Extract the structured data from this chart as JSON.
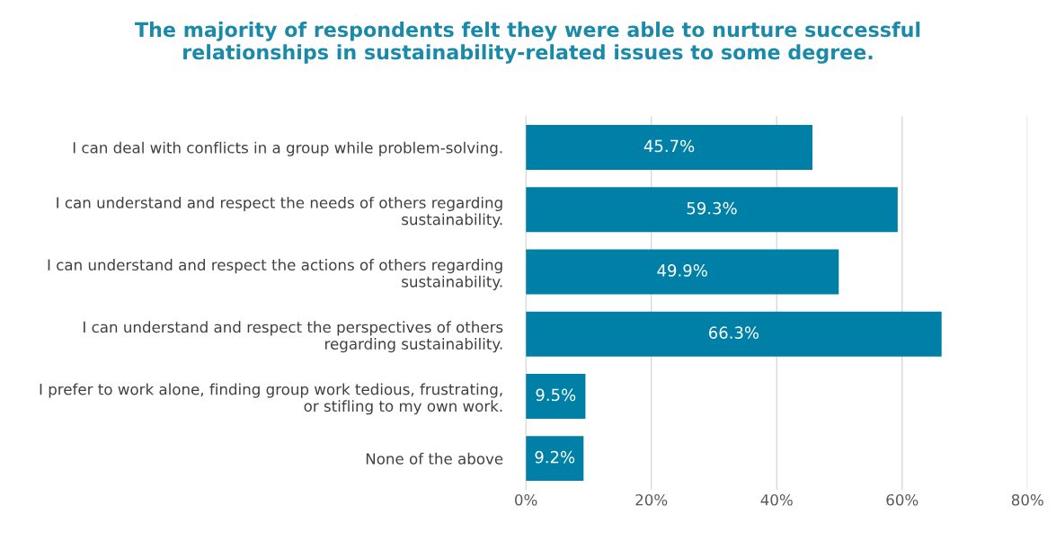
{
  "chart_data": {
    "type": "bar",
    "orientation": "horizontal",
    "title": "The majority of respondents felt they were able to nurture successful\nrelationships in sustainability-related issues to some degree.",
    "categories": [
      "I can deal with conflicts in a group while problem-solving.",
      "I can understand and respect the needs of others regarding\nsustainability.",
      "I can understand and respect the actions of others regarding\nsustainability.",
      "I can understand and respect the perspectives of others\nregarding sustainability.",
      "I prefer to work alone, finding group work tedious, frustrating,\nor stifling to my own work.",
      "None of the above"
    ],
    "values": [
      45.7,
      59.3,
      49.9,
      66.3,
      9.5,
      9.2
    ],
    "value_labels": [
      "45.7%",
      "59.3%",
      "49.9%",
      "66.3%",
      "9.5%",
      "9.2%"
    ],
    "color": "#0080a6",
    "xlim": [
      0,
      80
    ],
    "xticks": [
      {
        "value": 0,
        "label": "0%"
      },
      {
        "value": 20,
        "label": "20%"
      },
      {
        "value": 40,
        "label": "40%"
      },
      {
        "value": 60,
        "label": "60%"
      },
      {
        "value": 80,
        "label": "80%"
      }
    ],
    "grid": "x"
  }
}
